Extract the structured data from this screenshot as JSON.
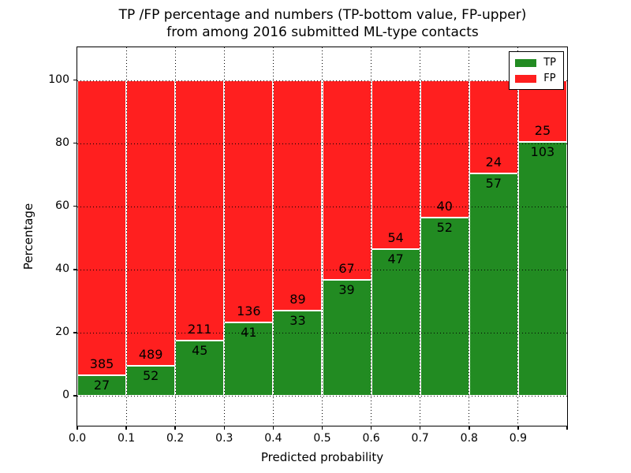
{
  "title": {
    "line1": "TP /FP percentage and numbers (TP-bottom value, FP-upper)",
    "line2": "from among 2016 submitted ML-type contacts"
  },
  "axes": {
    "xlabel": "Predicted probability",
    "ylabel": "Percentage",
    "x_tick_labels": [
      "0.0",
      "0.1",
      "0.2",
      "0.3",
      "0.4",
      "0.5",
      "0.6",
      "0.7",
      "0.8",
      "0.9"
    ],
    "y_tick_labels": [
      "0",
      "20",
      "40",
      "60",
      "80",
      "100"
    ],
    "y_tick_values": [
      0,
      20,
      40,
      60,
      80,
      100
    ]
  },
  "legend": {
    "entries": [
      {
        "label": "TP",
        "color": "#228b22"
      },
      {
        "label": "FP",
        "color": "#ff1f1f"
      }
    ],
    "position": "upper right"
  },
  "colors": {
    "tp": "#228b22",
    "fp": "#ff1f1f",
    "bar_edge": "#ffffff",
    "grid": "#000000",
    "background": "#ffffff"
  },
  "chart_data": {
    "type": "bar",
    "stacked": true,
    "normalized_to_percent": true,
    "title": "TP /FP percentage and numbers (TP-bottom value, FP-upper) from among 2016 submitted ML-type contacts",
    "xlabel": "Predicted probability",
    "ylabel": "Percentage",
    "x_bin_starts": [
      0.0,
      0.1,
      0.2,
      0.3,
      0.4,
      0.5,
      0.6,
      0.7,
      0.8,
      0.9
    ],
    "bin_width": 0.1,
    "series": [
      {
        "name": "TP",
        "counts": [
          27,
          52,
          45,
          41,
          33,
          39,
          47,
          52,
          57,
          103
        ],
        "color": "#228b22"
      },
      {
        "name": "FP",
        "counts": [
          385,
          489,
          211,
          136,
          89,
          67,
          54,
          40,
          24,
          25
        ],
        "color": "#ff1f1f"
      }
    ],
    "tp_percent": [
      6.55,
      9.61,
      17.58,
      23.16,
      27.05,
      36.79,
      46.53,
      56.52,
      70.37,
      80.47
    ],
    "total_contacts": 2016,
    "xlim": [
      0.0,
      1.0
    ],
    "ylim": [
      -10,
      110
    ],
    "grid": "dotted",
    "legend_position": "upper right"
  }
}
